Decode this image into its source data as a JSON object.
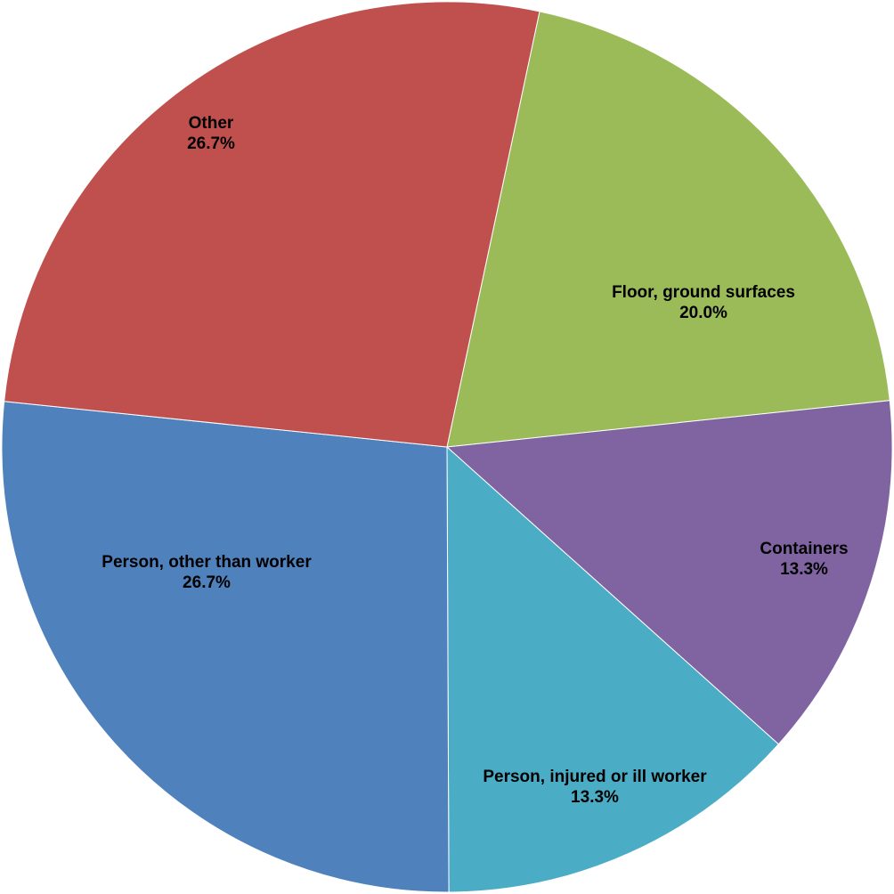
{
  "chart_data": {
    "type": "pie",
    "categories": [
      "Floor, ground surfaces",
      "Containers",
      "Person, injured or ill worker",
      "Person, other than worker",
      "Other"
    ],
    "values": [
      20.0,
      13.3,
      13.3,
      26.7,
      26.7
    ],
    "value_labels": [
      "20.0%",
      "13.3%",
      "13.3%",
      "26.7%",
      "26.7%"
    ],
    "colors": [
      "#9bbb59",
      "#8064a2",
      "#4bacc6",
      "#4f81bd",
      "#c0504d"
    ]
  }
}
